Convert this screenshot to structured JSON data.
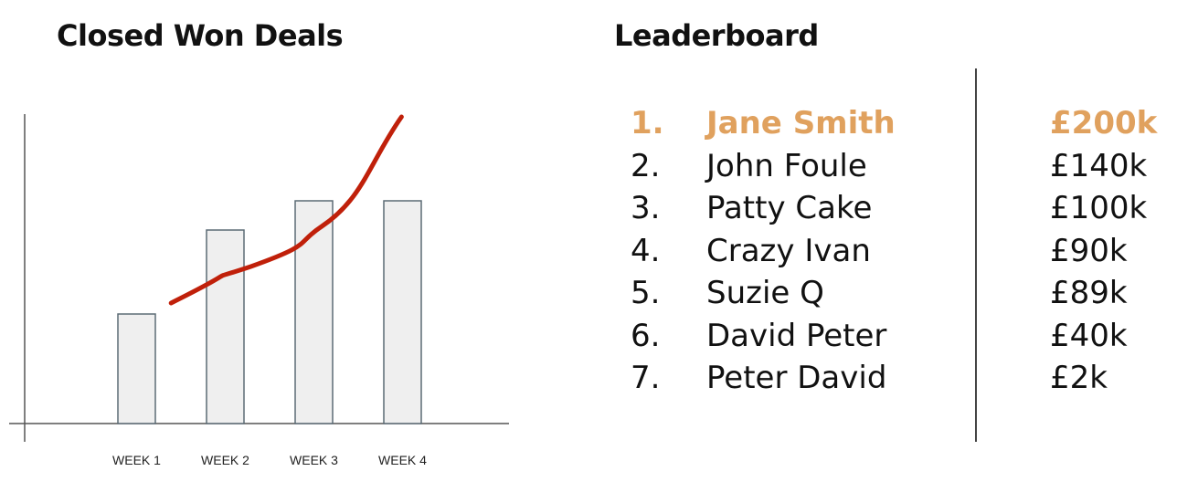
{
  "chart": {
    "title": "Closed Won Deals"
  },
  "chart_data": {
    "type": "bar",
    "title": "Closed Won Deals",
    "categories": [
      "WEEK 1",
      "WEEK 2",
      "WEEK 3",
      "WEEK 4"
    ],
    "values": [
      3.0,
      5.3,
      6.1,
      6.1
    ],
    "trend_line": [
      {
        "x": 0.6,
        "y": 3.3
      },
      {
        "x": 1.5,
        "y": 4.3
      },
      {
        "x": 2.3,
        "y": 5.4
      },
      {
        "x": 3.2,
        "y": 8.4
      }
    ],
    "xlabel": "",
    "ylabel": "",
    "ylim": [
      0,
      8
    ],
    "grid": false,
    "colors": {
      "bar_fill": "#efefef",
      "bar_stroke": "#5c6b75",
      "trend": "#c0200a",
      "axis": "#555555"
    }
  },
  "leaderboard": {
    "title": "Leaderboard",
    "highlight_color": "#e0a15e",
    "entries": [
      {
        "rank": "1.",
        "name": "Jane Smith",
        "amount": "£200k"
      },
      {
        "rank": "2.",
        "name": "John Foule",
        "amount": "£140k"
      },
      {
        "rank": "3.",
        "name": "Patty Cake",
        "amount": "£100k"
      },
      {
        "rank": "4.",
        "name": "Crazy Ivan",
        "amount": "£90k"
      },
      {
        "rank": "5.",
        "name": "Suzie Q",
        "amount": "£89k"
      },
      {
        "rank": "6.",
        "name": "David Peter",
        "amount": "£40k"
      },
      {
        "rank": "7.",
        "name": "Peter David",
        "amount": "£2k"
      }
    ]
  }
}
